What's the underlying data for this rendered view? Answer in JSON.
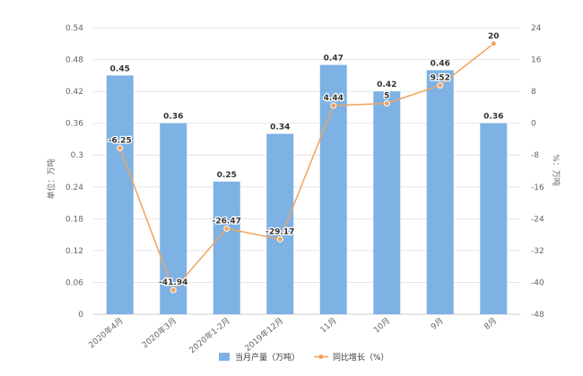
{
  "chart_data": {
    "type": "bar+line",
    "categories": [
      "2020年4月",
      "2020年3月",
      "2020年1-2月",
      "2019年12月",
      "11月",
      "10月",
      "9月",
      "8月"
    ],
    "series": [
      {
        "name": "当月产量（万吨）",
        "type": "bar",
        "axis": "left",
        "values": [
          0.45,
          0.36,
          0.25,
          0.34,
          0.47,
          0.42,
          0.46,
          0.36
        ],
        "labels": [
          "0.45",
          "0.36",
          "0.25",
          "0.34",
          "0.47",
          "0.42",
          "0.46",
          "0.36"
        ],
        "color": "#7eb2e4"
      },
      {
        "name": "同比增长（%）",
        "type": "line",
        "axis": "right",
        "values": [
          -6.25,
          -41.94,
          -26.47,
          -29.17,
          4.44,
          5,
          9.52,
          20
        ],
        "labels": [
          "-6.25",
          "-41.94",
          "-26.47",
          "-29.17",
          "4.44",
          "5",
          "9.52",
          "20"
        ],
        "color": "#f0a35e"
      }
    ],
    "y_left": {
      "label": "单位：万吨",
      "range": [
        0,
        0.54
      ],
      "ticks": [
        "0",
        "0.06",
        "0.12",
        "0.18",
        "0.24",
        "0.3",
        "0.36",
        "0.42",
        "0.48",
        "0.54"
      ]
    },
    "y_right": {
      "label": "%：万吨",
      "range": [
        -48,
        24
      ],
      "ticks": [
        "-48",
        "-40",
        "-32",
        "-24",
        "-16",
        "-8",
        "0",
        "8",
        "16",
        "24"
      ]
    },
    "grid": true,
    "legend_position": "bottom"
  }
}
